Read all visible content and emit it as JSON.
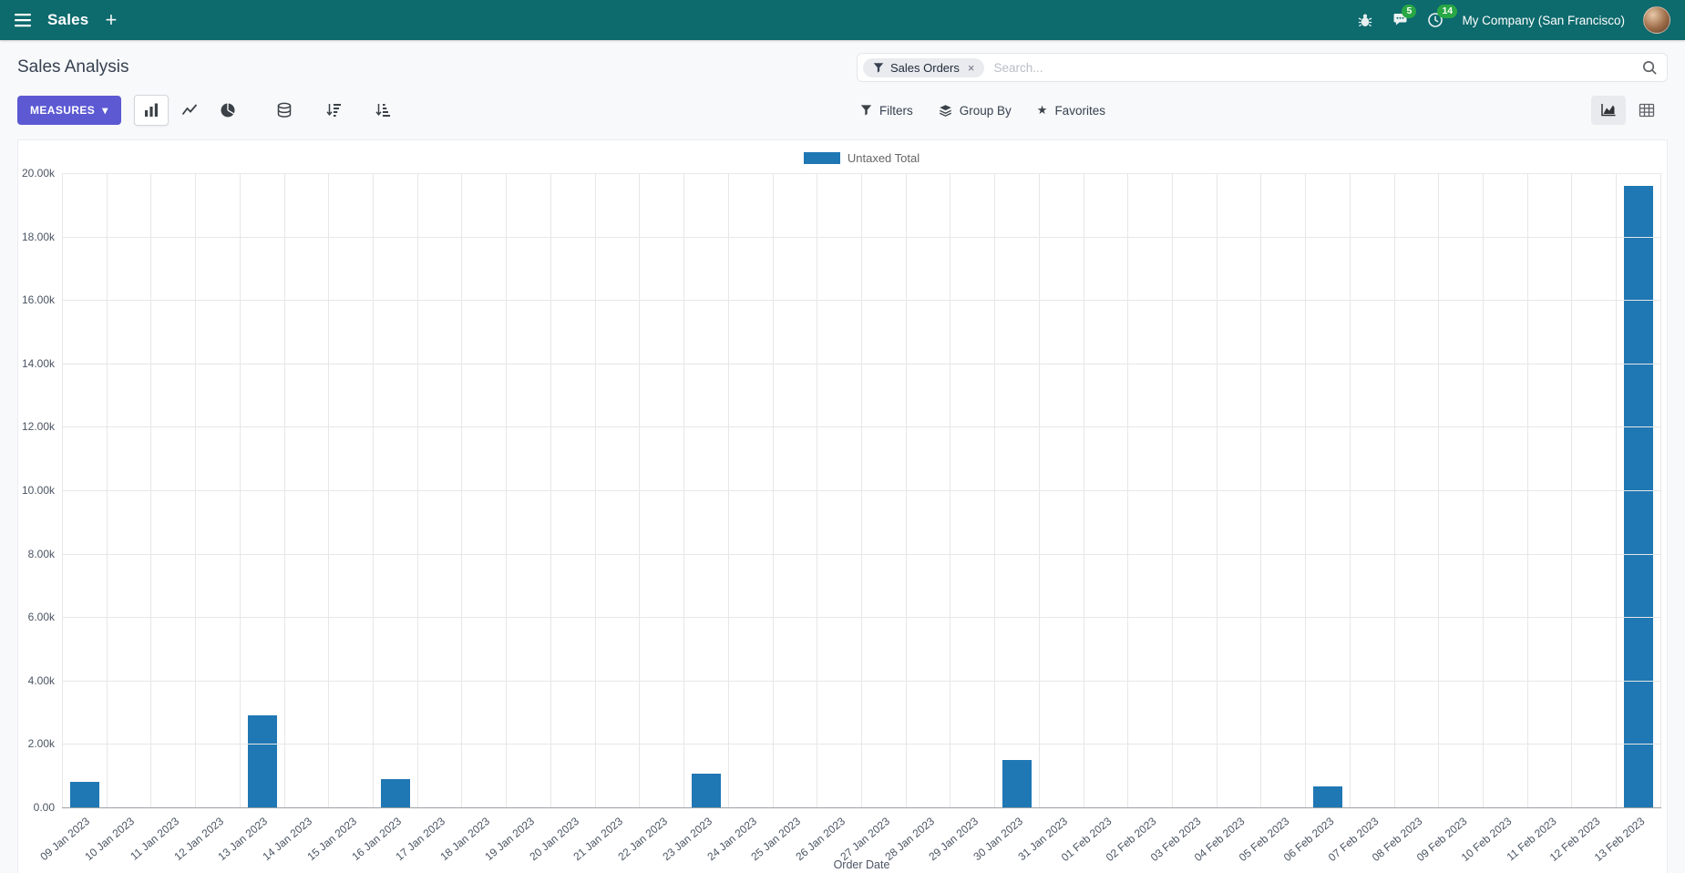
{
  "navbar": {
    "app_name": "Sales",
    "company": "My Company (San Francisco)",
    "messages_badge": "5",
    "activities_badge": "14"
  },
  "icons": {
    "add": "+",
    "caret_down": "▾",
    "close": "×",
    "star": "★"
  },
  "control_panel": {
    "title": "Sales Analysis",
    "measures_label": "Measures",
    "search": {
      "facet_label": "Sales Orders",
      "placeholder": "Search..."
    },
    "filters_label": "Filters",
    "group_by_label": "Group By",
    "favorites_label": "Favorites"
  },
  "chart_data": {
    "type": "bar",
    "title": "",
    "legend": "Untaxed Total",
    "series_color": "#1f77b4",
    "xlabel": "Order Date",
    "ylabel": "",
    "ylim": [
      0,
      20000
    ],
    "grid": true,
    "legend_position": "top",
    "y_ticks": [
      "20.00k",
      "18.00k",
      "16.00k",
      "14.00k",
      "12.00k",
      "10.00k",
      "8.00k",
      "6.00k",
      "4.00k",
      "2.00k",
      "0.00"
    ],
    "categories": [
      "09 Jan 2023",
      "10 Jan 2023",
      "11 Jan 2023",
      "12 Jan 2023",
      "13 Jan 2023",
      "14 Jan 2023",
      "15 Jan 2023",
      "16 Jan 2023",
      "17 Jan 2023",
      "18 Jan 2023",
      "19 Jan 2023",
      "20 Jan 2023",
      "21 Jan 2023",
      "22 Jan 2023",
      "23 Jan 2023",
      "24 Jan 2023",
      "25 Jan 2023",
      "26 Jan 2023",
      "27 Jan 2023",
      "28 Jan 2023",
      "29 Jan 2023",
      "30 Jan 2023",
      "31 Jan 2023",
      "01 Feb 2023",
      "02 Feb 2023",
      "03 Feb 2023",
      "04 Feb 2023",
      "05 Feb 2023",
      "06 Feb 2023",
      "07 Feb 2023",
      "08 Feb 2023",
      "09 Feb 2023",
      "10 Feb 2023",
      "11 Feb 2023",
      "12 Feb 2023",
      "13 Feb 2023"
    ],
    "values": [
      800,
      0,
      0,
      0,
      2900,
      0,
      0,
      900,
      0,
      0,
      0,
      0,
      0,
      0,
      1050,
      0,
      0,
      0,
      0,
      0,
      0,
      1500,
      0,
      0,
      0,
      0,
      0,
      0,
      650,
      0,
      0,
      0,
      0,
      0,
      0,
      19600
    ]
  }
}
